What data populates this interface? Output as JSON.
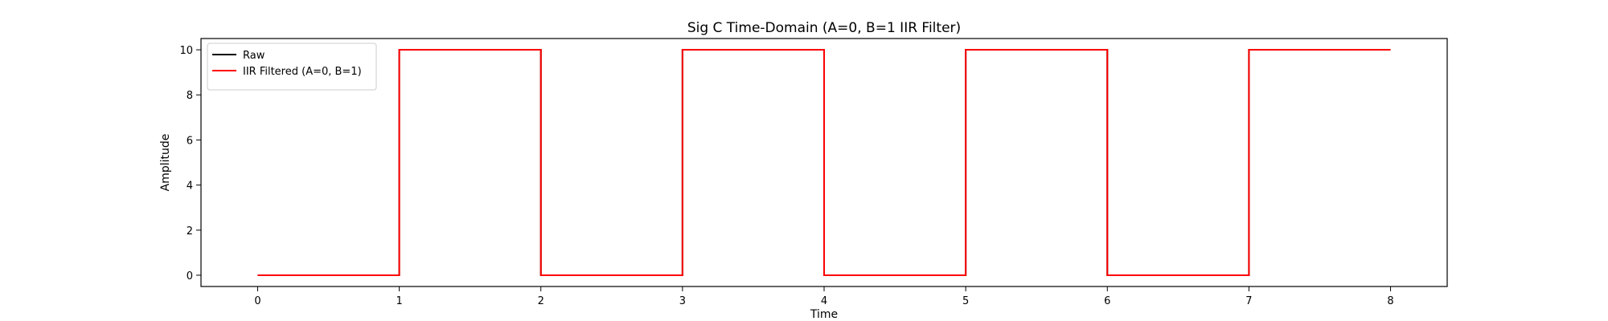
{
  "chart_data": {
    "type": "line",
    "title": "Sig C Time-Domain (A=0, B=1 IIR Filter)",
    "xlabel": "Time",
    "ylabel": "Amplitude",
    "xlim": [
      -0.4,
      8.4
    ],
    "ylim": [
      -0.5,
      10.5
    ],
    "xticks": [
      0,
      1,
      2,
      3,
      4,
      5,
      6,
      7,
      8
    ],
    "yticks": [
      0,
      2,
      4,
      6,
      8,
      10
    ],
    "grid": false,
    "legend_position": "top-left",
    "series": [
      {
        "name": "Raw",
        "color": "#000000",
        "x": [
          0,
          1,
          1,
          2,
          2,
          3,
          3,
          4,
          4,
          5,
          5,
          6,
          6,
          7,
          7,
          8
        ],
        "y": [
          0,
          0,
          10,
          10,
          0,
          0,
          10,
          10,
          0,
          0,
          10,
          10,
          0,
          0,
          10,
          10
        ]
      },
      {
        "name": "IIR Filtered (A=0, B=1)",
        "color": "#ff0000",
        "x": [
          0,
          1,
          1,
          2,
          2,
          3,
          3,
          4,
          4,
          5,
          5,
          6,
          6,
          7,
          7,
          8
        ],
        "y": [
          0,
          0,
          10,
          10,
          0,
          0,
          10,
          10,
          0,
          0,
          10,
          10,
          0,
          0,
          10,
          10
        ]
      }
    ]
  }
}
